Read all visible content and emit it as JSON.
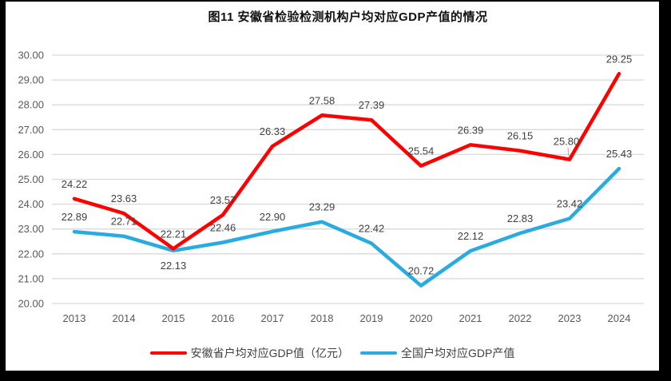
{
  "window": {
    "outer_background": "#000000",
    "canvas_background": "#ffffff"
  },
  "chart": {
    "title": "图11 安徽省检验检测机构户均对应GDP产值的情况"
  },
  "chart_data": {
    "type": "line",
    "title": "图11 安徽省检验检测机构户均对应GDP产值的情况",
    "categories": [
      "2013",
      "2014",
      "2015",
      "2016",
      "2017",
      "2018",
      "2019",
      "2020",
      "2021",
      "2022",
      "2023",
      "2024"
    ],
    "series": [
      {
        "name": "安徽省户均对应GDP值（亿元）",
        "color": "#FE0000",
        "values": [
          24.22,
          23.63,
          22.21,
          23.57,
          26.33,
          27.58,
          27.39,
          25.54,
          26.39,
          26.15,
          25.8,
          29.25
        ]
      },
      {
        "name": "全国户均对应GDP产值",
        "color": "#29ABE2",
        "values": [
          22.89,
          22.71,
          22.13,
          22.46,
          22.9,
          23.29,
          22.42,
          20.72,
          22.12,
          22.83,
          23.42,
          25.43
        ]
      }
    ],
    "ylim": [
      20,
      30
    ],
    "ytick_step": 1,
    "ytick_decimals": 2,
    "data_label_decimals": 2,
    "grid": true,
    "data_labels": true,
    "legend_position": "bottom",
    "label_overrides": [
      {
        "series": 1,
        "index": 2,
        "position": "below"
      },
      {
        "series": 0,
        "index": 10,
        "dx": -4,
        "dy": -4,
        "leader": true
      }
    ],
    "colors": {
      "gridline": "#D9D9D9",
      "tick_label": "#595959",
      "data_label": "#404040",
      "leader_line": "#A6A6A6"
    }
  }
}
